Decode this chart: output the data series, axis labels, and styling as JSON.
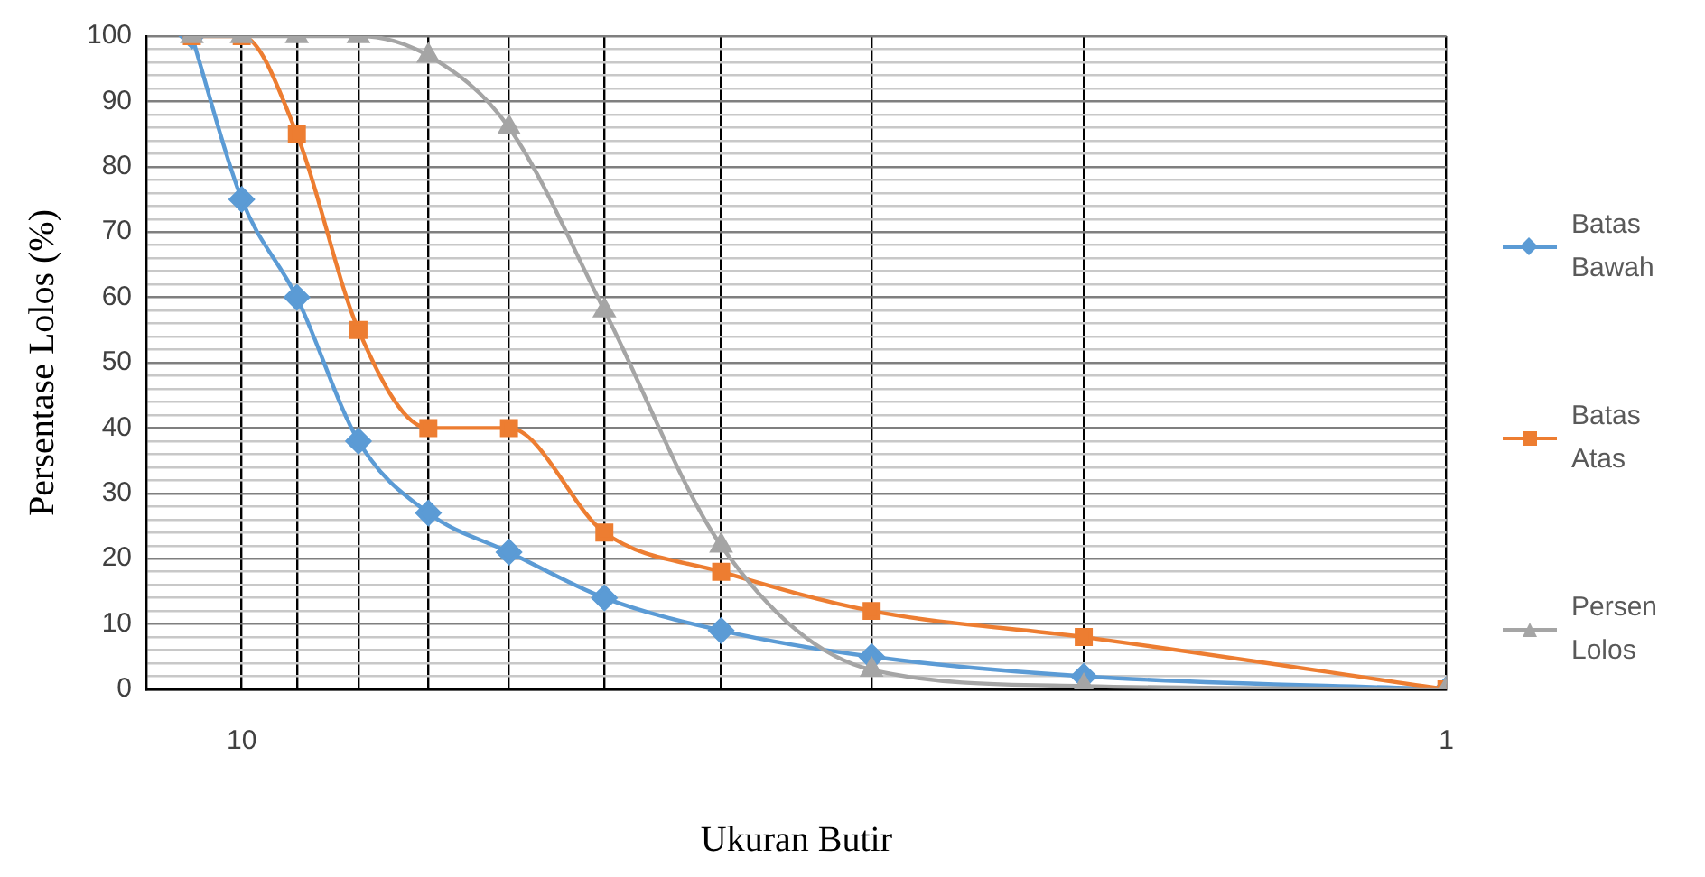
{
  "chart_data": {
    "type": "line",
    "xlabel": "Ukuran Butir",
    "ylabel": "Persentase Lolos (%)",
    "x": [
      11,
      10,
      9,
      8,
      7,
      6,
      5,
      4,
      3,
      2,
      1
    ],
    "series": [
      {
        "name": "Batas Bawah",
        "color": "#5b9bd5",
        "marker": "diamond",
        "values": [
          100,
          75,
          60,
          38,
          27,
          21,
          14,
          9,
          5,
          2,
          0
        ]
      },
      {
        "name": "Batas Atas",
        "color": "#ed7d31",
        "marker": "square",
        "values": [
          100,
          100,
          85,
          55,
          40,
          40,
          24,
          18,
          12,
          8,
          0
        ]
      },
      {
        "name": "Persen Lolos",
        "color": "#a5a5a5",
        "marker": "triangle",
        "values": [
          100,
          100,
          100,
          100,
          97,
          86,
          58,
          22,
          3,
          0.5,
          0
        ]
      }
    ],
    "log": "x",
    "xlim": [
      12,
      1
    ],
    "xticks": [
      10,
      {
        "value": 9,
        "label": null
      },
      {
        "value": 8,
        "label": null
      },
      {
        "value": 7,
        "label": null
      },
      {
        "value": 6,
        "label": null
      },
      {
        "value": 5,
        "label": null
      },
      {
        "value": 4,
        "label": null
      },
      {
        "value": 3,
        "label": null
      },
      {
        "value": 2,
        "label": null
      },
      1
    ],
    "ylim": [
      0,
      100
    ],
    "yticks": [
      0,
      {
        "value": 2,
        "label": null
      },
      {
        "value": 4,
        "label": null
      },
      {
        "value": 6,
        "label": null
      },
      {
        "value": 8,
        "label": null
      },
      10,
      {
        "value": 12,
        "label": null
      },
      {
        "value": 14,
        "label": null
      },
      {
        "value": 16,
        "label": null
      },
      {
        "value": 18,
        "label": null
      },
      20,
      {
        "value": 22,
        "label": null
      },
      {
        "value": 24,
        "label": null
      },
      {
        "value": 26,
        "label": null
      },
      {
        "value": 28,
        "label": null
      },
      30,
      {
        "value": 32,
        "label": null
      },
      {
        "value": 34,
        "label": null
      },
      {
        "value": 36,
        "label": null
      },
      {
        "value": 38,
        "label": null
      },
      40,
      {
        "value": 42,
        "label": null
      },
      {
        "value": 44,
        "label": null
      },
      {
        "value": 46,
        "label": null
      },
      {
        "value": 48,
        "label": null
      },
      50,
      {
        "value": 52,
        "label": null
      },
      {
        "value": 54,
        "label": null
      },
      {
        "value": 56,
        "label": null
      },
      {
        "value": 58,
        "label": null
      },
      60,
      {
        "value": 62,
        "label": null
      },
      {
        "value": 64,
        "label": null
      },
      {
        "value": 66,
        "label": null
      },
      {
        "value": 68,
        "label": null
      },
      70,
      {
        "value": 72,
        "label": null
      },
      {
        "value": 74,
        "label": null
      },
      {
        "value": 76,
        "label": null
      },
      {
        "value": 78,
        "label": null
      },
      80,
      {
        "value": 82,
        "label": null
      },
      {
        "value": 84,
        "label": null
      },
      {
        "value": 86,
        "label": null
      },
      {
        "value": 88,
        "label": null
      },
      90,
      {
        "value": 92,
        "label": null
      },
      {
        "value": 94,
        "label": null
      },
      {
        "value": 96,
        "label": null
      },
      {
        "value": 98,
        "label": null
      },
      100
    ],
    "grid": true,
    "legend": "right",
    "line_style": "solid"
  }
}
